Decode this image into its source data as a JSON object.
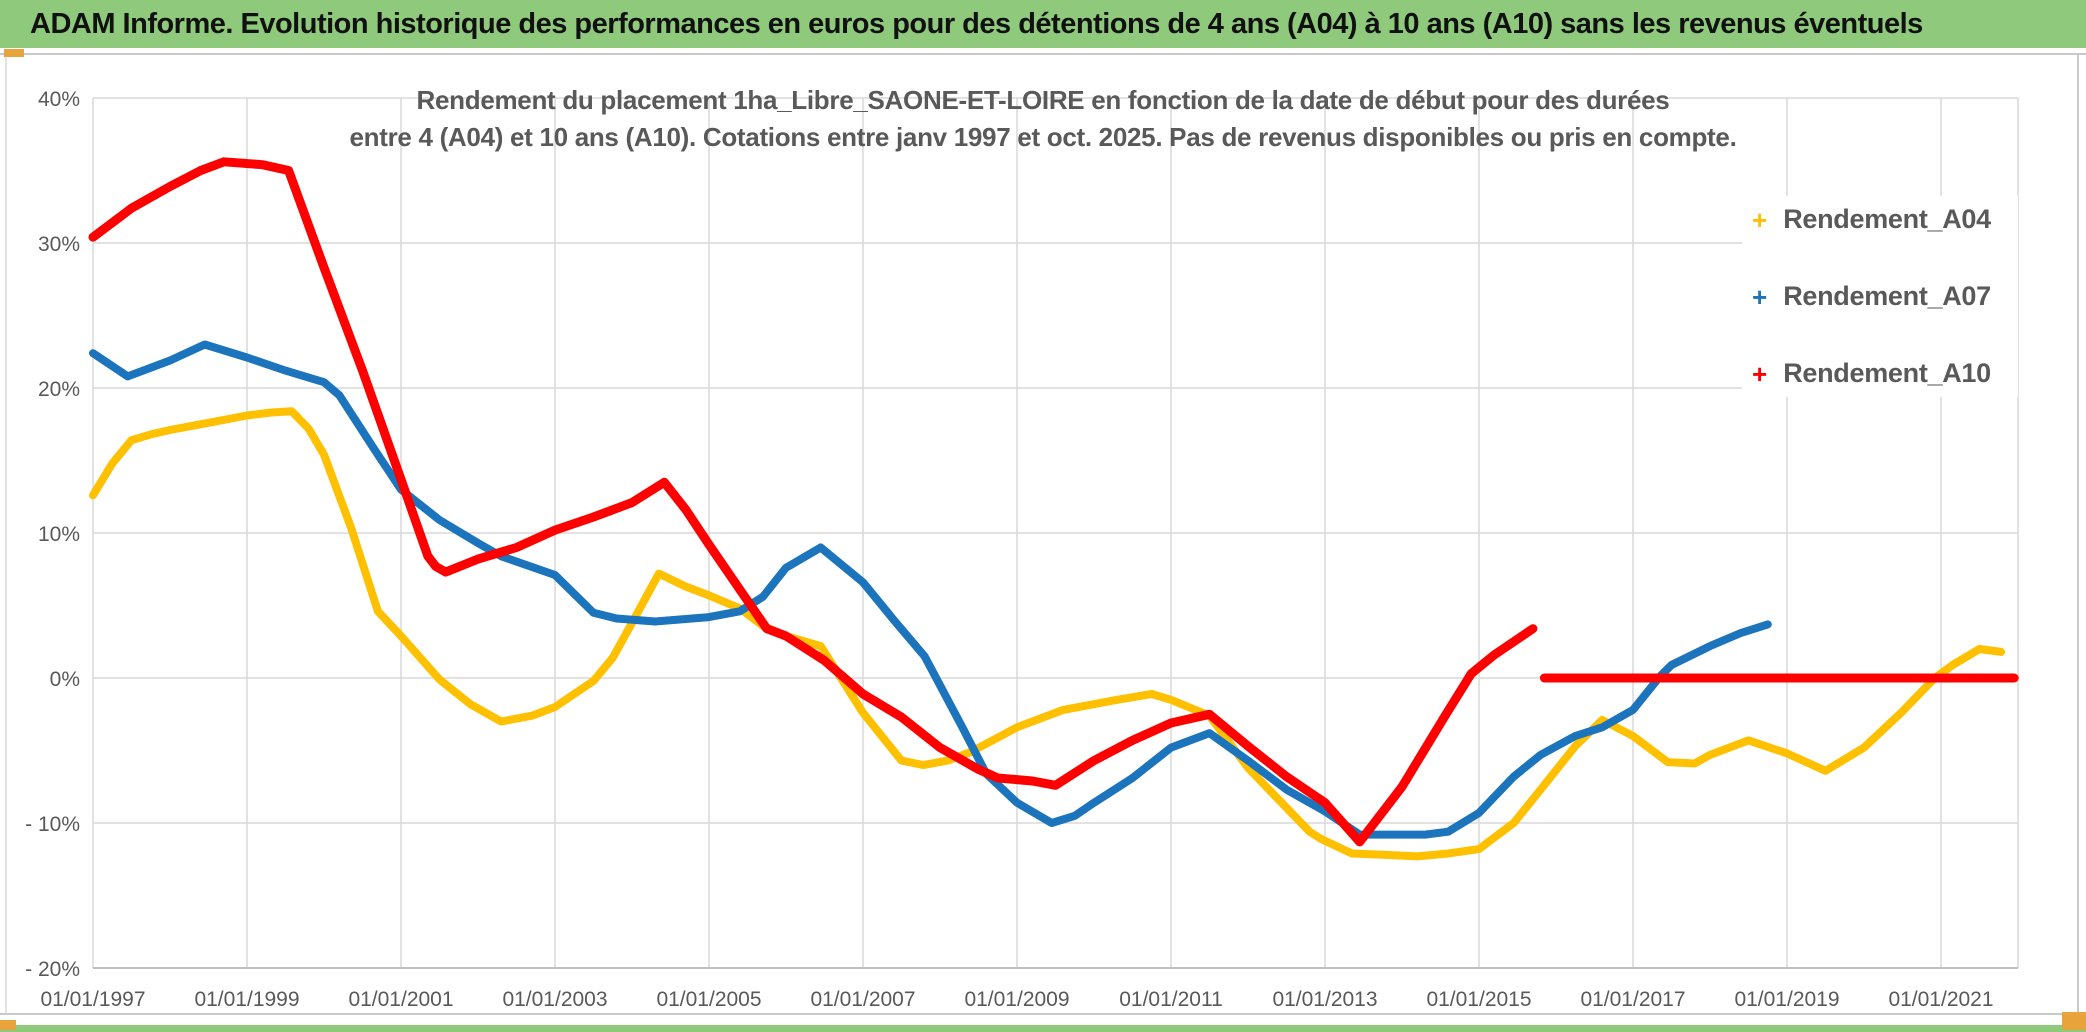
{
  "banner": {
    "title": "ADAM Informe. Evolution historique des performances en euros pour des détentions de 4 ans (A04) à 10 ans (A10) sans les revenus éventuels"
  },
  "colors": {
    "banner_bg": "#8FC97C",
    "bottom_bar": "#8FC97C",
    "accent_gold": "#E8A33B",
    "frame_gray": "#C9C9C9",
    "grid_gray": "#D9D9D9",
    "axis_gray": "#C0C0C0",
    "text_gray": "#595959"
  },
  "chart_data": {
    "type": "line",
    "title_line1": "Rendement du placement 1ha_Libre_SAONE-ET-LOIRE en fonction de la date de début pour des durées",
    "title_line2": "entre 4 (A04) et 10 ans (A10). Cotations entre janv 1997 et oct. 2025. Pas de revenus disponibles ou pris en compte.",
    "grid": true,
    "legend_position": "right-inside",
    "x_axis": {
      "tick_years": [
        1997,
        1999,
        2001,
        2003,
        2005,
        2007,
        2009,
        2011,
        2013,
        2015,
        2017,
        2019,
        2021
      ],
      "tick_labels": [
        "01/01/1997",
        "01/01/1999",
        "01/01/2001",
        "01/01/2003",
        "01/01/2005",
        "01/01/2007",
        "01/01/2009",
        "01/01/2011",
        "01/01/2013",
        "01/01/2015",
        "01/01/2017",
        "01/01/2019",
        "01/01/2021"
      ],
      "range_years": [
        1997.0,
        2022.0
      ]
    },
    "y_axis": {
      "tick_values": [
        40,
        30,
        20,
        10,
        0,
        -10,
        -20
      ],
      "tick_labels": [
        "40%",
        "30%",
        "20%",
        "10%",
        "0%",
        "- 10%",
        "- 20%"
      ],
      "range_percent": [
        -20,
        40
      ],
      "unit": "%"
    },
    "style": {
      "grid": "#D9D9D9",
      "axis": "#C0C0C0",
      "frame": "#C9C9C9",
      "tick_text": "#595959"
    },
    "series": [
      {
        "name": "Rendement_A04",
        "color": "#FFC000",
        "width": 8,
        "points": [
          [
            1997.0,
            12.6
          ],
          [
            1997.25,
            14.8
          ],
          [
            1997.5,
            16.4
          ],
          [
            1997.75,
            16.8
          ],
          [
            1998.0,
            17.1
          ],
          [
            1998.5,
            17.6
          ],
          [
            1999.0,
            18.1
          ],
          [
            1999.3,
            18.3
          ],
          [
            1999.58,
            18.4
          ],
          [
            1999.8,
            17.2
          ],
          [
            2000.0,
            15.4
          ],
          [
            2000.35,
            10.4
          ],
          [
            2000.7,
            4.6
          ],
          [
            2001.0,
            2.9
          ],
          [
            2001.5,
            -0.1
          ],
          [
            2001.9,
            -1.8
          ],
          [
            2002.3,
            -3.0
          ],
          [
            2002.7,
            -2.6
          ],
          [
            2003.0,
            -2.0
          ],
          [
            2003.5,
            -0.2
          ],
          [
            2003.75,
            1.4
          ],
          [
            2004.0,
            3.8
          ],
          [
            2004.35,
            7.2
          ],
          [
            2004.7,
            6.3
          ],
          [
            2005.0,
            5.7
          ],
          [
            2005.4,
            4.8
          ],
          [
            2005.7,
            3.6
          ],
          [
            2006.0,
            2.9
          ],
          [
            2006.45,
            2.2
          ],
          [
            2007.0,
            -2.4
          ],
          [
            2007.5,
            -5.7
          ],
          [
            2007.78,
            -6.0
          ],
          [
            2008.1,
            -5.7
          ],
          [
            2008.4,
            -5.1
          ],
          [
            2009.0,
            -3.4
          ],
          [
            2009.6,
            -2.2
          ],
          [
            2010.3,
            -1.5
          ],
          [
            2010.75,
            -1.1
          ],
          [
            2011.0,
            -1.5
          ],
          [
            2011.5,
            -2.6
          ],
          [
            2012.0,
            -6.2
          ],
          [
            2012.8,
            -10.6
          ],
          [
            2012.95,
            -11.1
          ],
          [
            2013.35,
            -12.1
          ],
          [
            2013.8,
            -12.2
          ],
          [
            2014.2,
            -12.3
          ],
          [
            2014.6,
            -12.1
          ],
          [
            2015.0,
            -11.8
          ],
          [
            2015.45,
            -10.0
          ],
          [
            2015.8,
            -7.7
          ],
          [
            2016.25,
            -4.7
          ],
          [
            2016.6,
            -2.9
          ],
          [
            2017.0,
            -4.0
          ],
          [
            2017.45,
            -5.8
          ],
          [
            2017.8,
            -5.9
          ],
          [
            2018.0,
            -5.3
          ],
          [
            2018.5,
            -4.3
          ],
          [
            2019.0,
            -5.2
          ],
          [
            2019.5,
            -6.4
          ],
          [
            2020.0,
            -4.8
          ],
          [
            2020.5,
            -2.3
          ],
          [
            2020.92,
            0.0
          ],
          [
            2021.15,
            0.9
          ],
          [
            2021.5,
            2.0
          ],
          [
            2021.78,
            1.8
          ]
        ]
      },
      {
        "name": "Rendement_A07",
        "color": "#1C74BC",
        "width": 8,
        "points": [
          [
            1997.0,
            22.4
          ],
          [
            1997.45,
            20.8
          ],
          [
            1998.0,
            21.9
          ],
          [
            1998.45,
            23.0
          ],
          [
            1999.0,
            22.1
          ],
          [
            1999.5,
            21.2
          ],
          [
            2000.0,
            20.4
          ],
          [
            2000.2,
            19.5
          ],
          [
            2000.65,
            15.8
          ],
          [
            2001.0,
            13.0
          ],
          [
            2001.5,
            10.9
          ],
          [
            2002.0,
            9.3
          ],
          [
            2002.3,
            8.4
          ],
          [
            2003.0,
            7.1
          ],
          [
            2003.5,
            4.5
          ],
          [
            2003.8,
            4.1
          ],
          [
            2004.3,
            3.9
          ],
          [
            2005.0,
            4.2
          ],
          [
            2005.4,
            4.6
          ],
          [
            2005.7,
            5.6
          ],
          [
            2006.0,
            7.6
          ],
          [
            2006.45,
            9.0
          ],
          [
            2007.0,
            6.6
          ],
          [
            2007.4,
            4.0
          ],
          [
            2007.8,
            1.5
          ],
          [
            2008.3,
            -3.5
          ],
          [
            2008.6,
            -6.6
          ],
          [
            2009.0,
            -8.6
          ],
          [
            2009.45,
            -10.0
          ],
          [
            2009.75,
            -9.5
          ],
          [
            2010.0,
            -8.6
          ],
          [
            2010.5,
            -6.9
          ],
          [
            2011.0,
            -4.8
          ],
          [
            2011.5,
            -3.8
          ],
          [
            2012.0,
            -5.7
          ],
          [
            2012.5,
            -7.7
          ],
          [
            2013.0,
            -9.2
          ],
          [
            2013.45,
            -10.8
          ],
          [
            2014.3,
            -10.8
          ],
          [
            2014.6,
            -10.6
          ],
          [
            2015.0,
            -9.3
          ],
          [
            2015.45,
            -6.8
          ],
          [
            2015.8,
            -5.3
          ],
          [
            2016.25,
            -4.0
          ],
          [
            2016.6,
            -3.4
          ],
          [
            2017.0,
            -2.2
          ],
          [
            2017.35,
            0.1
          ],
          [
            2017.5,
            0.9
          ],
          [
            2018.0,
            2.2
          ],
          [
            2018.4,
            3.1
          ],
          [
            2018.75,
            3.7
          ]
        ]
      },
      {
        "name": "Rendement_A10",
        "color": "#FF0000",
        "width": 9,
        "points": [
          [
            1997.0,
            30.4
          ],
          [
            1997.5,
            32.4
          ],
          [
            1998.0,
            33.9
          ],
          [
            1998.4,
            35.0
          ],
          [
            1998.7,
            35.6
          ],
          [
            1999.2,
            35.4
          ],
          [
            1999.54,
            35.0
          ],
          [
            2000.0,
            28.3
          ],
          [
            2000.5,
            21.2
          ],
          [
            2001.0,
            13.7
          ],
          [
            2001.35,
            8.4
          ],
          [
            2001.45,
            7.7
          ],
          [
            2001.58,
            7.3
          ],
          [
            2002.0,
            8.2
          ],
          [
            2002.5,
            9.0
          ],
          [
            2003.0,
            10.2
          ],
          [
            2003.5,
            11.1
          ],
          [
            2004.0,
            12.1
          ],
          [
            2004.42,
            13.5
          ],
          [
            2004.7,
            11.6
          ],
          [
            2005.0,
            9.2
          ],
          [
            2005.4,
            6.1
          ],
          [
            2005.75,
            3.4
          ],
          [
            2006.0,
            2.9
          ],
          [
            2006.5,
            1.2
          ],
          [
            2007.0,
            -1.1
          ],
          [
            2007.5,
            -2.7
          ],
          [
            2008.0,
            -4.8
          ],
          [
            2008.5,
            -6.3
          ],
          [
            2008.75,
            -6.9
          ],
          [
            2009.2,
            -7.1
          ],
          [
            2009.5,
            -7.4
          ],
          [
            2010.0,
            -5.7
          ],
          [
            2010.5,
            -4.3
          ],
          [
            2011.0,
            -3.1
          ],
          [
            2011.5,
            -2.5
          ],
          [
            2012.0,
            -4.7
          ],
          [
            2012.5,
            -6.8
          ],
          [
            2013.0,
            -8.6
          ],
          [
            2013.45,
            -11.3
          ],
          [
            2014.0,
            -7.5
          ],
          [
            2014.55,
            -2.7
          ],
          [
            2014.9,
            0.3
          ],
          [
            2015.2,
            1.6
          ],
          [
            2015.7,
            3.4
          ]
        ],
        "flat_segment": [
          [
            2015.85,
            0.0
          ],
          [
            2021.95,
            0.0
          ]
        ]
      }
    ]
  }
}
